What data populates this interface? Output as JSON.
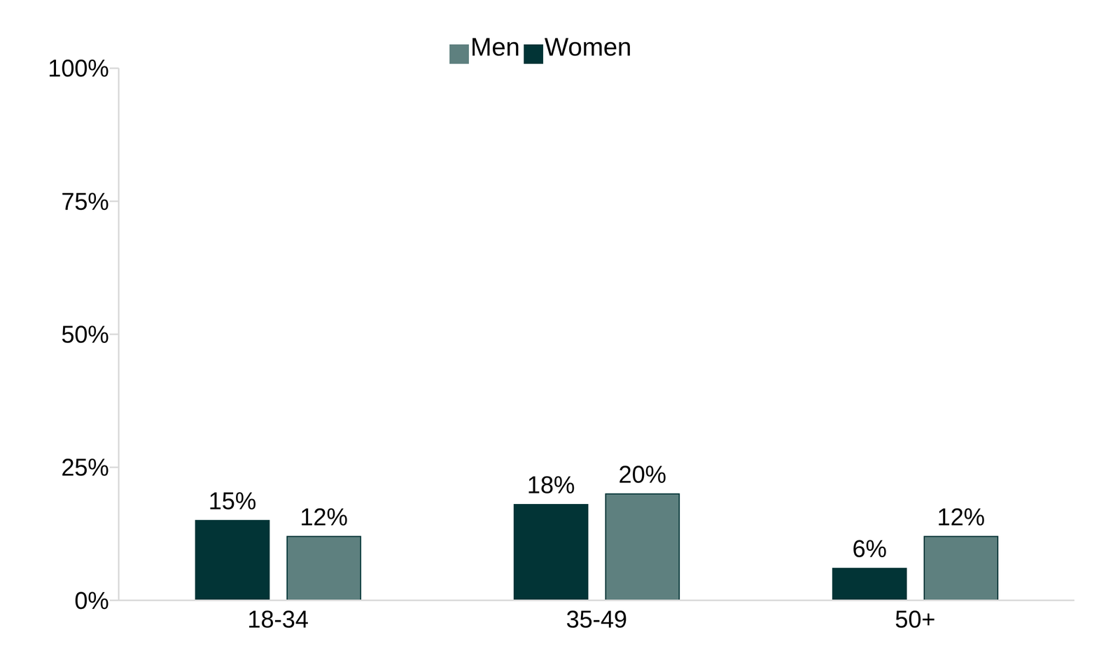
{
  "chart_data": {
    "type": "bar",
    "categories": [
      "18-34",
      "35-49",
      "50+"
    ],
    "series": [
      {
        "name": "Women",
        "color": "#023436",
        "values": [
          15,
          18,
          6
        ],
        "value_labels": [
          "15%",
          "18%",
          "6%"
        ]
      },
      {
        "name": "Men",
        "color": "#5e807f",
        "values": [
          12,
          20,
          12
        ],
        "value_labels": [
          "12%",
          "20%",
          "12%"
        ]
      }
    ],
    "ylim": [
      0,
      100
    ],
    "yticks": [
      {
        "value": 0,
        "label": "0%"
      },
      {
        "value": 25,
        "label": "25%"
      },
      {
        "value": 50,
        "label": "50%"
      },
      {
        "value": 75,
        "label": "75%"
      },
      {
        "value": 100,
        "label": "100%"
      }
    ],
    "grid": false,
    "legend": "top",
    "data_labels": true
  }
}
